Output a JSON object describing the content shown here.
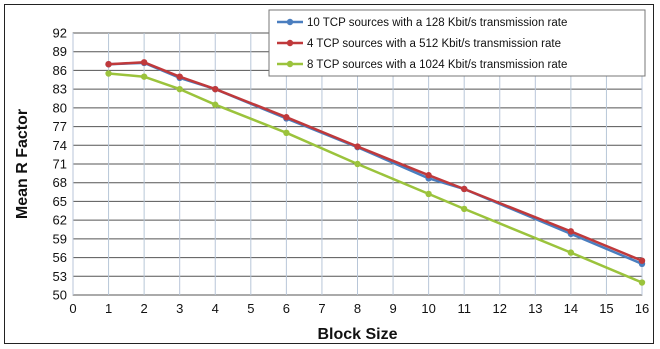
{
  "chart_data": {
    "type": "line",
    "title": "",
    "xlabel": "Block Size",
    "ylabel": "Mean R Factor",
    "xlim": [
      0,
      16
    ],
    "ylim": [
      50,
      92
    ],
    "x_ticks": [
      0,
      1,
      2,
      3,
      4,
      5,
      6,
      7,
      8,
      9,
      10,
      11,
      12,
      13,
      14,
      15,
      16
    ],
    "y_ticks": [
      50,
      53,
      56,
      59,
      62,
      65,
      68,
      71,
      74,
      77,
      80,
      83,
      86,
      89,
      92
    ],
    "grid": true,
    "legend_position": "top-right",
    "series": [
      {
        "name": "10 TCP sources with a 128 Kbit/s transmission rate",
        "color": "#4a7ebf",
        "x": [
          1,
          2,
          3,
          4,
          6,
          8,
          10,
          11,
          14,
          16
        ],
        "y": [
          87.0,
          87.2,
          84.8,
          83.0,
          78.3,
          73.7,
          68.7,
          67.0,
          59.8,
          55.0
        ]
      },
      {
        "name": "4 TCP sources with a 512 Kbit/s transmission rate",
        "color": "#c0393b",
        "x": [
          1,
          2,
          3,
          4,
          6,
          8,
          10,
          11,
          14,
          16
        ],
        "y": [
          87.0,
          87.3,
          85.0,
          83.0,
          78.5,
          73.8,
          69.2,
          67.0,
          60.2,
          55.5
        ]
      },
      {
        "name": "8 TCP sources with a 1024 Kbit/s transmission rate",
        "color": "#9bc33c",
        "x": [
          1,
          2,
          3,
          4,
          6,
          8,
          10,
          11,
          14,
          16
        ],
        "y": [
          85.5,
          85.0,
          83.0,
          80.5,
          76.0,
          71.0,
          66.2,
          63.8,
          56.8,
          52.0
        ]
      }
    ]
  }
}
